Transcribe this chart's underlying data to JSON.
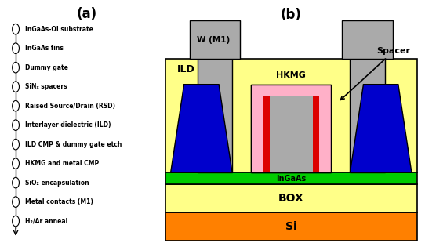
{
  "title_a": "(a)",
  "title_b": "(b)",
  "steps": [
    "InGaAs-OI substrate",
    "InGaAs fins",
    "Dummy gate",
    "SiNₓ spacers",
    "Raised Source/Drain (RSD)",
    "Interlayer dielectric (ILD)",
    "ILD CMP & dummy gate etch",
    "HKMG and metal CMP",
    "SiO₂ encapsulation",
    "Metal contacts (M1)",
    "H₂/Ar anneal"
  ],
  "colors": {
    "ILD": "#FFFF88",
    "Si": "#FF8000",
    "InGaAs": "#00CC00",
    "RSD_blue": "#0000CC",
    "HKMG_pink": "#FFB0C8",
    "HKMG_red": "#DD0000",
    "HKMG_gray": "#AAAAAA",
    "W_gray": "#AAAAAA",
    "background": "#FFFFFF"
  }
}
